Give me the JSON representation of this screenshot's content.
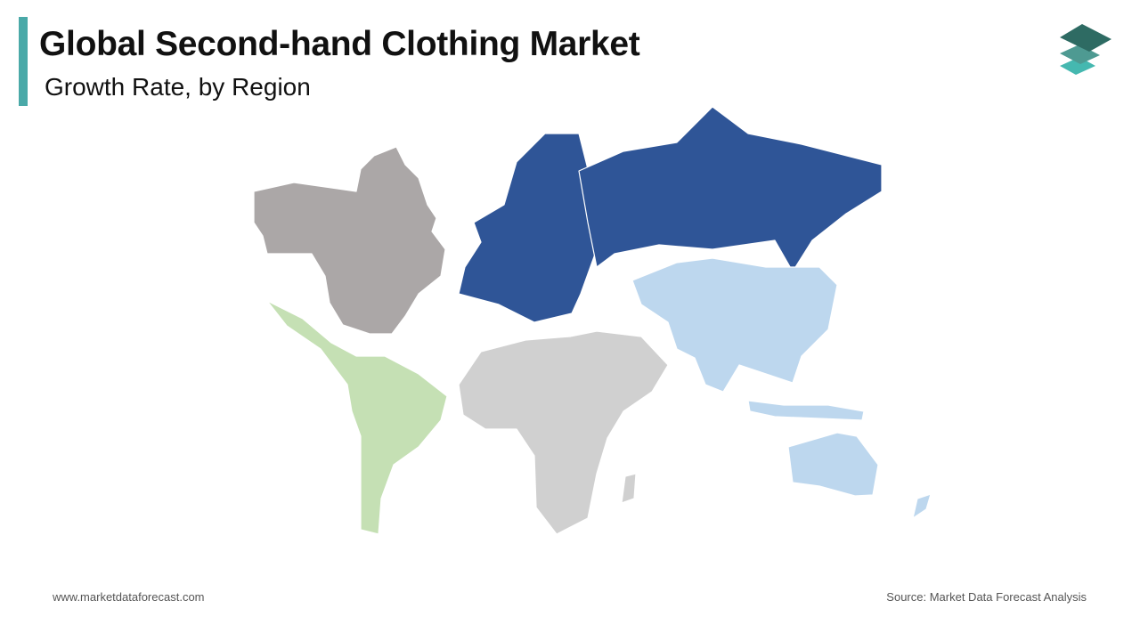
{
  "header": {
    "title": "Global Second-hand Clothing Market",
    "subtitle": "Growth Rate, by Region"
  },
  "logo": {
    "icon": "stacked-layers-logo",
    "colors": [
      "#2e6b63",
      "#4e9a92",
      "#45b8b0"
    ]
  },
  "map": {
    "regions": [
      {
        "region": "North America",
        "color": "#aba7a7"
      },
      {
        "region": "Latin America",
        "color": "#c5e0b4"
      },
      {
        "region": "Europe",
        "color": "#2f5597"
      },
      {
        "region": "Asia Pacific",
        "color": "#bdd7ee"
      },
      {
        "region": "Middle East & Africa",
        "color": "#d0d0d0"
      }
    ]
  },
  "footer": {
    "website": "www.marketdataforecast.com",
    "source": "Source: Market Data Forecast Analysis"
  }
}
